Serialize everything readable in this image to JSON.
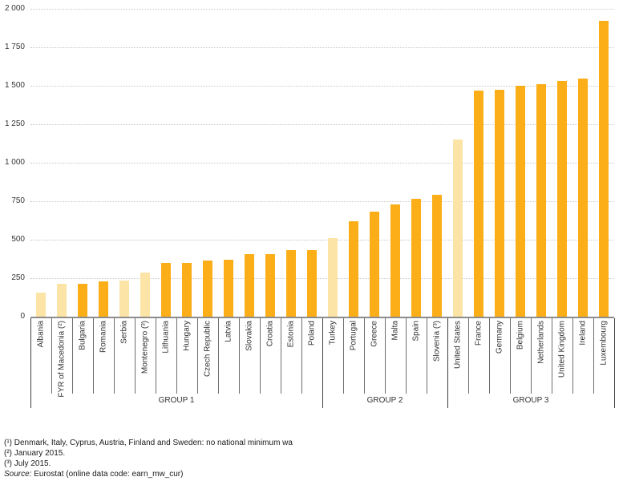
{
  "chart_data": {
    "type": "bar",
    "title": "",
    "xlabel": "",
    "ylabel": "",
    "ylim": [
      0,
      2000
    ],
    "grid": "horizontal-dotted",
    "y_ticks": [
      {
        "value": 0,
        "label": "0"
      },
      {
        "value": 250,
        "label": "250"
      },
      {
        "value": 500,
        "label": "500"
      },
      {
        "value": 750,
        "label": "750"
      },
      {
        "value": 1000,
        "label": "1 000"
      },
      {
        "value": 1250,
        "label": "1 250"
      },
      {
        "value": 1500,
        "label": "1 500"
      },
      {
        "value": 1750,
        "label": "1 750"
      },
      {
        "value": 2000,
        "label": "2 000"
      }
    ],
    "groups": [
      {
        "label": "GROUP 1",
        "size": 14
      },
      {
        "label": "GROUP 2",
        "size": 6
      },
      {
        "label": "GROUP 3",
        "size": 8
      }
    ],
    "bars": [
      {
        "label": "Albania",
        "value": 156,
        "non_eu": true
      },
      {
        "label": "FYR of Macedonia (²)",
        "value": 214,
        "non_eu": true
      },
      {
        "label": "Bulgaria",
        "value": 215,
        "non_eu": false
      },
      {
        "label": "Romania",
        "value": 230,
        "non_eu": false
      },
      {
        "label": "Serbia",
        "value": 235,
        "non_eu": true
      },
      {
        "label": "Montenegro (³)",
        "value": 288,
        "non_eu": true
      },
      {
        "label": "Lithuania",
        "value": 350,
        "non_eu": false
      },
      {
        "label": "Hungary",
        "value": 351,
        "non_eu": false
      },
      {
        "label": "Czech Republic",
        "value": 366,
        "non_eu": false
      },
      {
        "label": "Latvia",
        "value": 370,
        "non_eu": false
      },
      {
        "label": "Slovakia",
        "value": 405,
        "non_eu": false
      },
      {
        "label": "Croatia",
        "value": 408,
        "non_eu": false
      },
      {
        "label": "Estonia",
        "value": 430,
        "non_eu": false
      },
      {
        "label": "Poland",
        "value": 434,
        "non_eu": false
      },
      {
        "label": "Turkey",
        "value": 511,
        "non_eu": true
      },
      {
        "label": "Portugal",
        "value": 618,
        "non_eu": false
      },
      {
        "label": "Greece",
        "value": 684,
        "non_eu": false
      },
      {
        "label": "Malta",
        "value": 728,
        "non_eu": false
      },
      {
        "label": "Spain",
        "value": 764,
        "non_eu": false
      },
      {
        "label": "Slovenia (³)",
        "value": 791,
        "non_eu": false
      },
      {
        "label": "United States",
        "value": 1150,
        "non_eu": true
      },
      {
        "label": "France",
        "value": 1467,
        "non_eu": false
      },
      {
        "label": "Germany",
        "value": 1473,
        "non_eu": false
      },
      {
        "label": "Belgium",
        "value": 1502,
        "non_eu": false
      },
      {
        "label": "Netherlands",
        "value": 1508,
        "non_eu": false
      },
      {
        "label": "United Kingdom",
        "value": 1529,
        "non_eu": false
      },
      {
        "label": "Ireland",
        "value": 1546,
        "non_eu": false
      },
      {
        "label": "Luxembourg",
        "value": 1923,
        "non_eu": false
      }
    ]
  },
  "colors": {
    "bar": "#FBAE17",
    "bar_light": "#FCE4A6",
    "gridline": "#C9C9C9",
    "axis_line": "#8C8C8C",
    "column_separator": "#6E6E6E",
    "group_separator": "#404040",
    "text": "#333333"
  },
  "footnotes": {
    "lines": [
      "(¹) Denmark, Italy, Cyprus, Austria, Finland and Sweden: no national minimum wa",
      "(²) January 2015.",
      "(³) July 2015."
    ],
    "source_label": "Source:",
    "source_text": " Eurostat (online data code: earn_mw_cur)"
  }
}
